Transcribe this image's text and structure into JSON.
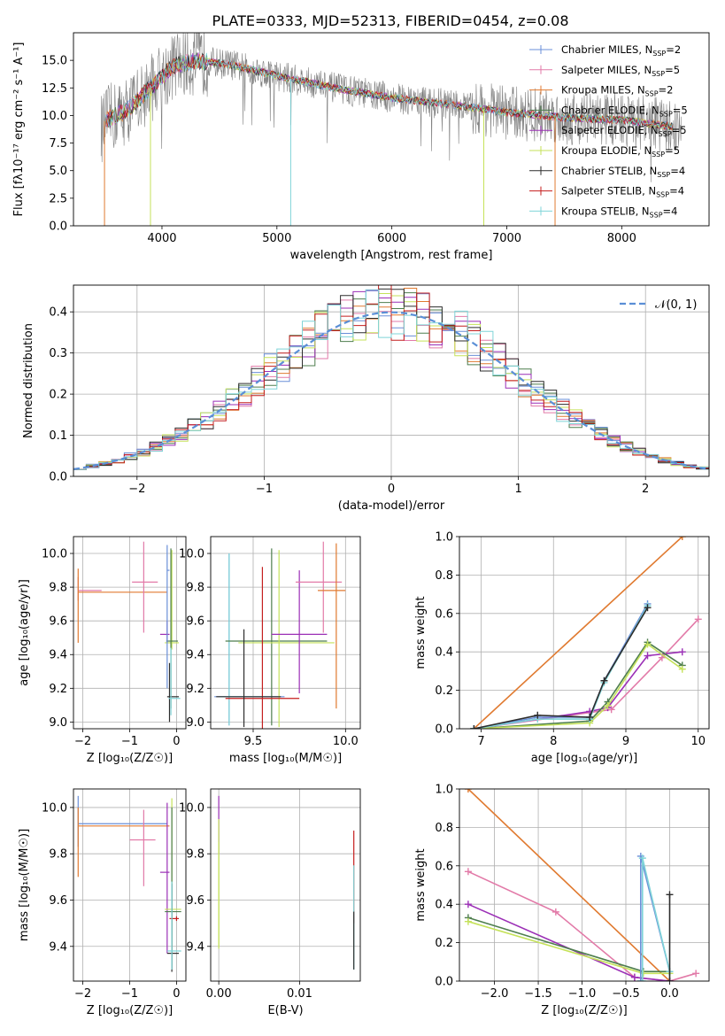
{
  "title": "PLATE=0333, MJD=52313, FIBERID=0454, z=0.08",
  "colors": {
    "chabrier_miles": "#6a8fd8",
    "salpeter_miles": "#e27aa8",
    "kroupa_miles": "#e07a30",
    "chabrier_elodie": "#4e7e4e",
    "salpeter_elodie": "#9b2fb6",
    "kroupa_elodie": "#c5e25a",
    "chabrier_stelib": "#2d2d2d",
    "salpeter_stelib": "#c41e1e",
    "kroupa_stelib": "#7fd4d8",
    "normal": "#5b8fd6",
    "data_spectrum": "#808080"
  },
  "chart_data": [
    {
      "type": "line",
      "name": "spectrum",
      "xlabel": "wavelength [Angstrom, rest frame]",
      "ylabel": "Flux [fλ10⁻¹⁷ erg cm⁻² s⁻¹ A⁻¹]",
      "xlim": [
        3230,
        8760
      ],
      "ylim": [
        0,
        17.5
      ],
      "xticks": [
        "4000",
        "5000",
        "6000",
        "7000",
        "8000"
      ],
      "yticks": [
        "0.0",
        "2.5",
        "5.0",
        "7.5",
        "10.0",
        "12.5",
        "15.0"
      ],
      "legend_position": "upper right",
      "legend": [
        {
          "model": "Chabrier MILES",
          "n": "2",
          "color_key": "chabrier_miles"
        },
        {
          "model": "Salpeter MILES",
          "n": "5",
          "color_key": "salpeter_miles"
        },
        {
          "model": "Kroupa MILES",
          "n": "2",
          "color_key": "kroupa_miles"
        },
        {
          "model": "Chabrier ELODIE",
          "n": "5",
          "color_key": "chabrier_elodie"
        },
        {
          "model": "Salpeter ELODIE",
          "n": "5",
          "color_key": "salpeter_elodie"
        },
        {
          "model": "Kroupa ELODIE",
          "n": "5",
          "color_key": "kroupa_elodie"
        },
        {
          "model": "Chabrier STELIB",
          "n": "4",
          "color_key": "chabrier_stelib"
        },
        {
          "model": "Salpeter STELIB",
          "n": "4",
          "color_key": "salpeter_stelib"
        },
        {
          "model": "Kroupa STELIB",
          "n": "4",
          "color_key": "kroupa_stelib"
        }
      ],
      "continuum": [
        [
          3500,
          9.5
        ],
        [
          3700,
          10.5
        ],
        [
          3900,
          12.5
        ],
        [
          4100,
          14.5
        ],
        [
          4300,
          15.0
        ],
        [
          4600,
          14.6
        ],
        [
          5000,
          13.6
        ],
        [
          5500,
          12.5
        ],
        [
          6000,
          11.6
        ],
        [
          6500,
          11.0
        ],
        [
          7000,
          10.3
        ],
        [
          7300,
          10.0
        ],
        [
          7500,
          9.8
        ],
        [
          8000,
          9.6
        ],
        [
          8300,
          9.2
        ],
        [
          8500,
          8.9
        ]
      ],
      "dropouts": [
        {
          "x": 3500,
          "color_key": "kroupa_miles"
        },
        {
          "x": 3900,
          "color_key": "kroupa_elodie"
        },
        {
          "x": 5120,
          "color_key": "kroupa_stelib"
        },
        {
          "x": 6800,
          "color_key": "kroupa_elodie"
        },
        {
          "x": 7420,
          "color_key": "kroupa_miles"
        }
      ]
    },
    {
      "type": "histogram",
      "name": "residuals",
      "xlabel": "(data-model)/error",
      "ylabel": "Normed distribution",
      "xlim": [
        -2.5,
        2.5
      ],
      "ylim": [
        0,
        0.465
      ],
      "xticks": [
        "−2",
        "−1",
        "0",
        "1",
        "2"
      ],
      "yticks": [
        "0.0",
        "0.1",
        "0.2",
        "0.3",
        "0.4"
      ],
      "bin_width": 0.1,
      "legend_label": "𝒩(0, 1)",
      "legend_position": "upper right"
    },
    {
      "type": "scatter",
      "name": "age-vs-Z",
      "xlabel": "Z [log₁₀(Z/Z☉)]",
      "ylabel": "age  [log₁₀(age/yr)]",
      "xlim": [
        -2.2,
        0.2
      ],
      "ylim": [
        8.96,
        10.1
      ],
      "xticks": [
        -2,
        -1,
        0
      ],
      "yticks": [
        9.0,
        9.2,
        9.4,
        9.6,
        9.8,
        10.0
      ],
      "xticklabels": [
        "−2",
        "−1",
        "0"
      ],
      "yticklabels": [
        "9.0",
        "9.2",
        "9.4",
        "9.6",
        "9.8",
        "10.0"
      ],
      "points": [
        {
          "x": -2.1,
          "y": 9.78,
          "xerr": [
            0,
            0.5
          ],
          "yerr": [
            0.06,
            0.08
          ],
          "color_key": "salpeter_miles"
        },
        {
          "x": -2.1,
          "y": 9.77,
          "xerr": [
            0,
            1.9
          ],
          "yerr": [
            0.3,
            0.14
          ],
          "color_key": "kroupa_miles"
        },
        {
          "x": -0.7,
          "y": 9.83,
          "xerr": [
            0.25,
            0.3
          ],
          "yerr": [
            0.3,
            0.24
          ],
          "color_key": "salpeter_miles"
        },
        {
          "x": -0.2,
          "y": 9.52,
          "xerr": [
            0.15,
            0.05
          ],
          "yerr": [
            0.05,
            0.08
          ],
          "color_key": "salpeter_elodie"
        },
        {
          "x": -0.1,
          "y": 9.47,
          "xerr": [
            0.15,
            0.15
          ],
          "yerr": [
            0.04,
            0.55
          ],
          "color_key": "kroupa_elodie"
        },
        {
          "x": -0.12,
          "y": 9.48,
          "xerr": [
            0.1,
            0.15
          ],
          "yerr": [
            0.4,
            0.55
          ],
          "color_key": "chabrier_elodie"
        },
        {
          "x": -0.15,
          "y": 9.15,
          "xerr": [
            0.05,
            0.2
          ],
          "yerr": [
            0.15,
            0.2
          ],
          "color_key": "chabrier_stelib"
        },
        {
          "x": -0.12,
          "y": 9.14,
          "xerr": [
            0.05,
            0.2
          ],
          "yerr": [
            0.1,
            0.3
          ],
          "color_key": "kroupa_stelib"
        },
        {
          "x": -0.2,
          "y": 9.9,
          "xerr": [
            0,
            0.05
          ],
          "yerr": [
            0.7,
            0.15
          ],
          "color_key": "chabrier_miles"
        }
      ]
    },
    {
      "type": "scatter",
      "name": "age-vs-mass",
      "xlabel": "mass [log₁₀(M/M☉)]",
      "ylabel": "",
      "xlim": [
        9.27,
        10.08
      ],
      "ylim": [
        8.96,
        10.1
      ],
      "xticks": [
        9.5,
        10.0
      ],
      "yticks": [
        9.0,
        9.2,
        9.4,
        9.6,
        9.8,
        10.0
      ],
      "xticklabels": [
        "9.5",
        "10.0"
      ],
      "yticklabels": [
        "9.0",
        "9.2",
        "9.4",
        "9.6",
        "9.8",
        "10.0"
      ],
      "points": [
        {
          "x": 9.37,
          "y": 9.15,
          "xerr": [
            0.08,
            0.3
          ],
          "yerr": [
            0.17,
            0.85
          ],
          "color_key": "chabrier_miles"
        },
        {
          "x": 9.37,
          "y": 9.15,
          "xerr": [
            0.05,
            0.2
          ],
          "yerr": [
            0.17,
            0.85
          ],
          "color_key": "kroupa_stelib"
        },
        {
          "x": 9.6,
          "y": 9.48,
          "xerr": [
            0.25,
            0.3
          ],
          "yerr": [
            0.5,
            0.55
          ],
          "color_key": "chabrier_elodie"
        },
        {
          "x": 9.64,
          "y": 9.47,
          "xerr": [
            0.22,
            0.3
          ],
          "yerr": [
            0.5,
            0.55
          ],
          "color_key": "kroupa_elodie"
        },
        {
          "x": 9.75,
          "y": 9.52,
          "xerr": [
            0.15,
            0.15
          ],
          "yerr": [
            0.35,
            0.38
          ],
          "color_key": "salpeter_elodie"
        },
        {
          "x": 9.88,
          "y": 9.83,
          "xerr": [
            0.15,
            0.1
          ],
          "yerr": [
            0.3,
            0.24
          ],
          "color_key": "salpeter_miles"
        },
        {
          "x": 9.95,
          "y": 9.78,
          "xerr": [
            0.1,
            0.05
          ],
          "yerr": [
            0.7,
            0.28
          ],
          "color_key": "kroupa_miles"
        },
        {
          "x": 9.55,
          "y": 9.14,
          "xerr": [
            0.2,
            0.2
          ],
          "yerr": [
            0.18,
            0.78
          ],
          "color_key": "salpeter_stelib"
        },
        {
          "x": 9.45,
          "y": 9.15,
          "xerr": [
            0.15,
            0.2
          ],
          "yerr": [
            0.18,
            0.4
          ],
          "color_key": "chabrier_stelib"
        }
      ]
    },
    {
      "type": "line",
      "name": "mass-weight-vs-age",
      "xlabel": "age  [log₁₀(age/yr)]",
      "ylabel": "mass weight",
      "xlim": [
        6.7,
        10.15
      ],
      "ylim": [
        0,
        1.0
      ],
      "xticks": [
        7,
        8,
        9,
        10
      ],
      "yticks": [
        0.0,
        0.2,
        0.4,
        0.6,
        0.8,
        1.0
      ],
      "xticklabels": [
        "7",
        "8",
        "9",
        "10"
      ],
      "yticklabels": [
        "0.0",
        "0.2",
        "0.4",
        "0.6",
        "0.8",
        "1.0"
      ],
      "series": [
        {
          "color_key": "kroupa_miles",
          "x": [
            6.9,
            9.78
          ],
          "y": [
            0.0,
            1.0
          ]
        },
        {
          "color_key": "salpeter_miles",
          "x": [
            6.9,
            8.8,
            9.5,
            10.0
          ],
          "y": [
            0.0,
            0.1,
            0.37,
            0.57
          ]
        },
        {
          "color_key": "salpeter_elodie",
          "x": [
            6.9,
            8.5,
            8.75,
            9.3,
            9.78
          ],
          "y": [
            0.0,
            0.09,
            0.11,
            0.38,
            0.4
          ]
        },
        {
          "color_key": "chabrier_elodie",
          "x": [
            6.9,
            8.5,
            8.75,
            9.3,
            9.78
          ],
          "y": [
            0.0,
            0.04,
            0.14,
            0.45,
            0.33
          ]
        },
        {
          "color_key": "kroupa_elodie",
          "x": [
            6.9,
            8.5,
            8.75,
            9.3,
            9.78
          ],
          "y": [
            0.0,
            0.03,
            0.12,
            0.44,
            0.31
          ]
        },
        {
          "color_key": "chabrier_miles",
          "x": [
            6.9,
            7.78,
            8.5,
            8.7,
            9.3
          ],
          "y": [
            0.0,
            0.06,
            0.06,
            0.25,
            0.65
          ]
        },
        {
          "color_key": "kroupa_stelib",
          "x": [
            6.9,
            7.78,
            8.5,
            8.7,
            9.3
          ],
          "y": [
            0.0,
            0.05,
            0.05,
            0.24,
            0.64
          ]
        },
        {
          "color_key": "chabrier_stelib",
          "x": [
            6.9,
            7.78,
            8.5,
            8.7,
            9.3
          ],
          "y": [
            0.0,
            0.07,
            0.06,
            0.25,
            0.63
          ]
        }
      ]
    },
    {
      "type": "scatter",
      "name": "mass-vs-Z",
      "xlabel": "Z [log₁₀(Z/Z☉)]",
      "ylabel": "mass [log₁₀(M/M☉)]",
      "xlim": [
        -2.2,
        0.2
      ],
      "ylim": [
        9.25,
        10.08
      ],
      "xticks": [
        -2,
        -1,
        0
      ],
      "yticks": [
        9.4,
        9.6,
        9.8,
        10.0
      ],
      "xticklabels": [
        "−2",
        "−1",
        "0"
      ],
      "yticklabels": [
        "9.4",
        "9.6",
        "9.8",
        "10.0"
      ],
      "points": [
        {
          "x": -2.1,
          "y": 9.93,
          "xerr": [
            0,
            1.9
          ],
          "yerr": [
            0.1,
            0.12
          ],
          "color_key": "chabrier_miles"
        },
        {
          "x": -2.1,
          "y": 9.92,
          "xerr": [
            0,
            1.95
          ],
          "yerr": [
            0.22,
            0.08
          ],
          "color_key": "kroupa_miles"
        },
        {
          "x": -0.7,
          "y": 9.86,
          "xerr": [
            0.3,
            0.25
          ],
          "yerr": [
            0.2,
            0.13
          ],
          "color_key": "salpeter_miles"
        },
        {
          "x": -0.2,
          "y": 9.72,
          "xerr": [
            0.15,
            0.05
          ],
          "yerr": [
            0.35,
            0.3
          ],
          "color_key": "salpeter_elodie"
        },
        {
          "x": -0.1,
          "y": 9.56,
          "xerr": [
            0.15,
            0.2
          ],
          "yerr": [
            0.2,
            0.48
          ],
          "color_key": "kroupa_elodie"
        },
        {
          "x": -0.1,
          "y": 9.55,
          "xerr": [
            0.15,
            0.2
          ],
          "yerr": [
            0.25,
            0.45
          ],
          "color_key": "chabrier_elodie"
        },
        {
          "x": 0.0,
          "y": 9.52,
          "xerr": [
            0.15,
            0.05
          ],
          "yerr": [
            0.01,
            0.01
          ],
          "color_key": "salpeter_stelib"
        },
        {
          "x": -0.1,
          "y": 9.37,
          "xerr": [
            0.1,
            0.15
          ],
          "yerr": [
            0.08,
            0.3
          ],
          "color_key": "chabrier_stelib"
        },
        {
          "x": -0.1,
          "y": 9.38,
          "xerr": [
            0.1,
            0.2
          ],
          "yerr": [
            0.08,
            0.3
          ],
          "color_key": "kroupa_stelib"
        }
      ]
    },
    {
      "type": "scatter",
      "name": "mass-vs-ebv",
      "xlabel": "E(B-V)",
      "ylabel": "",
      "xlim": [
        -0.001,
        0.0175
      ],
      "ylim": [
        9.25,
        10.08
      ],
      "xticks": [
        0.0,
        0.01
      ],
      "yticks": [
        9.4,
        9.6,
        9.8,
        10.0
      ],
      "xticklabels": [
        "0.00",
        "0.01"
      ],
      "yticklabels": [
        "9.4",
        "9.6",
        "9.8",
        "10.0"
      ],
      "points": [
        {
          "x": 0.0,
          "y": 9.9,
          "xerr": [
            0,
            0
          ],
          "yerr": [
            0.1,
            0.15
          ],
          "color_key": "salpeter_elodie"
        },
        {
          "x": 0.0,
          "y": 9.75,
          "xerr": [
            0,
            0
          ],
          "yerr": [
            0.35,
            0.2
          ],
          "color_key": "kroupa_elodie"
        },
        {
          "x": 0.0,
          "y": 9.45,
          "xerr": [
            0,
            0
          ],
          "yerr": [
            0.06,
            0.4
          ],
          "color_key": "kroupa_elodie"
        },
        {
          "x": 0.0167,
          "y": 9.8,
          "xerr": [
            0,
            0
          ],
          "yerr": [
            0.3,
            0.1
          ],
          "color_key": "salpeter_stelib"
        },
        {
          "x": 0.0167,
          "y": 9.55,
          "xerr": [
            0,
            0
          ],
          "yerr": [
            0.25,
            0.2
          ],
          "color_key": "kroupa_stelib"
        },
        {
          "x": 0.0167,
          "y": 9.45,
          "xerr": [
            0,
            0
          ],
          "yerr": [
            0.15,
            0.1
          ],
          "color_key": "chabrier_stelib"
        }
      ]
    },
    {
      "type": "line",
      "name": "mass-weight-vs-Z",
      "xlabel": "Z [log₁₀(Z/Z☉)]",
      "ylabel": "mass weight",
      "xlim": [
        -2.4,
        0.45
      ],
      "ylim": [
        0,
        1.0
      ],
      "xticks": [
        -2.0,
        -1.5,
        -1.0,
        -0.5,
        0.0
      ],
      "yticks": [
        0.0,
        0.2,
        0.4,
        0.6,
        0.8,
        1.0
      ],
      "xticklabels": [
        "−2.0",
        "−1.5",
        "−1.0",
        "−0.5",
        "0.0"
      ],
      "yticklabels": [
        "0.0",
        "0.2",
        "0.4",
        "0.6",
        "0.8",
        "1.0"
      ],
      "series": [
        {
          "color_key": "kroupa_miles",
          "x": [
            -2.3,
            0.0
          ],
          "y": [
            1.0,
            0.0
          ]
        },
        {
          "color_key": "salpeter_miles",
          "x": [
            -2.3,
            -1.3,
            -0.4,
            0.0,
            0.3
          ],
          "y": [
            0.57,
            0.36,
            0.02,
            0.0,
            0.04
          ]
        },
        {
          "color_key": "salpeter_elodie",
          "x": [
            -2.3,
            -0.4,
            0.0
          ],
          "y": [
            0.4,
            0.02,
            0.0
          ]
        },
        {
          "color_key": "chabrier_elodie",
          "x": [
            -2.3,
            -0.3,
            0.0
          ],
          "y": [
            0.33,
            0.05,
            0.05
          ]
        },
        {
          "color_key": "kroupa_elodie",
          "x": [
            -2.3,
            -0.3,
            0.0
          ],
          "y": [
            0.31,
            0.04,
            0.04
          ]
        },
        {
          "color_key": "chabrier_miles",
          "x": [
            -0.33,
            -0.33,
            0.0
          ],
          "y": [
            0.0,
            0.65,
            0.05
          ]
        },
        {
          "color_key": "kroupa_stelib",
          "x": [
            -0.31,
            -0.31,
            0.0
          ],
          "y": [
            0.0,
            0.64,
            0.05
          ]
        },
        {
          "color_key": "chabrier_stelib",
          "x": [
            0.0,
            0.0
          ],
          "y": [
            0.0,
            0.45
          ]
        }
      ]
    }
  ]
}
